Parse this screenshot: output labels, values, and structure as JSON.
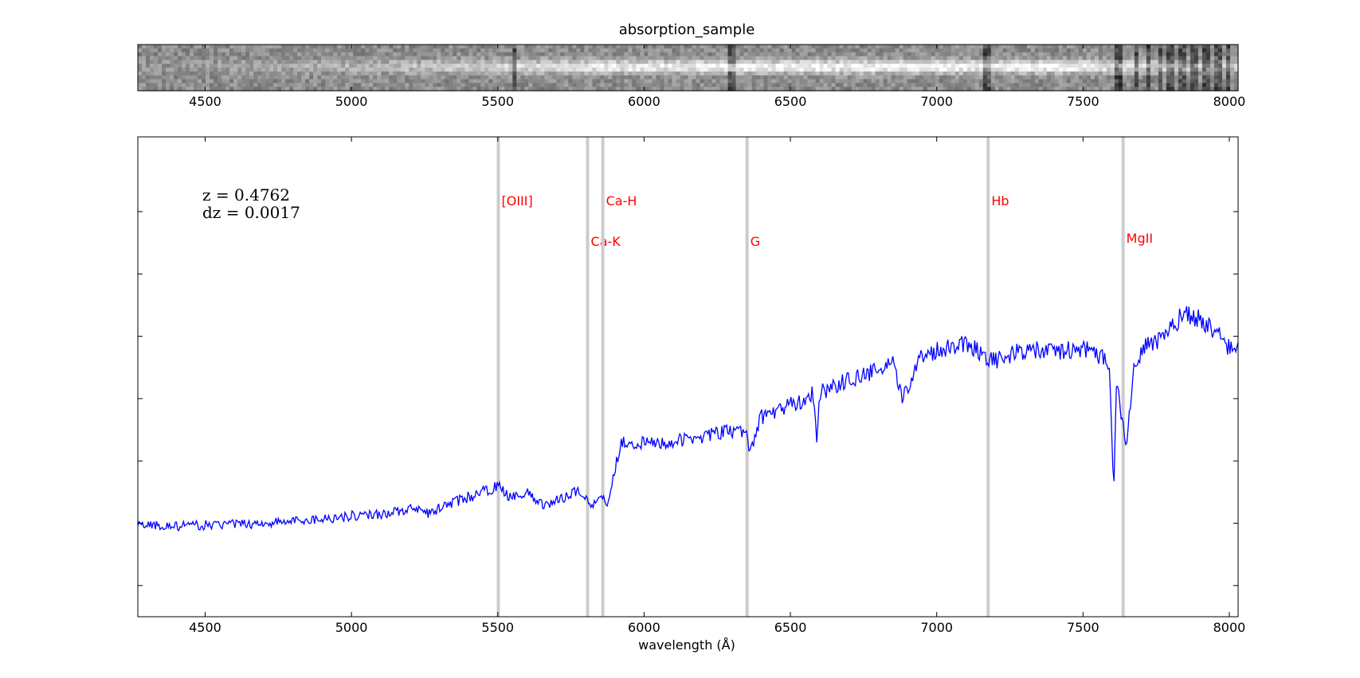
{
  "chart_data": [
    {
      "type": "heatmap",
      "name": "2d-spectrum",
      "title": "absorption_sample",
      "xlim": [
        4270,
        8030
      ],
      "xticks": [
        4500,
        5000,
        5500,
        6000,
        6500,
        7000,
        7500,
        8000
      ],
      "colormap": "grayscale",
      "bright_trace_intensity": [
        {
          "x": 4300,
          "v": 0.05
        },
        {
          "x": 4800,
          "v": 0.25
        },
        {
          "x": 5200,
          "v": 0.45
        },
        {
          "x": 5500,
          "v": 0.65
        },
        {
          "x": 5850,
          "v": 0.85
        },
        {
          "x": 6500,
          "v": 0.95
        },
        {
          "x": 7000,
          "v": 0.95
        },
        {
          "x": 7500,
          "v": 0.9
        },
        {
          "x": 7650,
          "v": 0.7
        },
        {
          "x": 8030,
          "v": 0.5
        }
      ],
      "dark_bands_x": [
        5560,
        6300,
        7170,
        7620,
        7680,
        7720,
        7760,
        7800,
        7840,
        7880,
        7920,
        7960,
        8000
      ]
    },
    {
      "type": "line",
      "name": "1d-spectrum",
      "xlabel": "wavelength (Å)",
      "ylabel": "",
      "xlim": [
        4270,
        8030
      ],
      "ylim": [
        0,
        7.7
      ],
      "xticks": [
        4500,
        5000,
        5500,
        6000,
        6500,
        7000,
        7500,
        8000
      ],
      "ytick_values": [
        0.5,
        1.5,
        2.5,
        3.5,
        4.5,
        5.5,
        6.5
      ],
      "redshift_text": [
        "z = 0.4762",
        "dz = 0.0017"
      ],
      "series": [
        {
          "name": "flux",
          "color": "#0000ff",
          "noise": 0.06,
          "points": [
            [
              4270,
              1.48
            ],
            [
              4400,
              1.45
            ],
            [
              4500,
              1.47
            ],
            [
              4700,
              1.5
            ],
            [
              4900,
              1.57
            ],
            [
              5000,
              1.62
            ],
            [
              5100,
              1.65
            ],
            [
              5200,
              1.72
            ],
            [
              5280,
              1.65
            ],
            [
              5300,
              1.75
            ],
            [
              5400,
              1.92
            ],
            [
              5450,
              2.0
            ],
            [
              5500,
              2.1
            ],
            [
              5530,
              1.95
            ],
            [
              5600,
              1.98
            ],
            [
              5650,
              1.8
            ],
            [
              5700,
              1.85
            ],
            [
              5760,
              2.02
            ],
            [
              5800,
              1.95
            ],
            [
              5820,
              1.72
            ],
            [
              5850,
              2.0
            ],
            [
              5875,
              1.8
            ],
            [
              5920,
              2.8
            ],
            [
              6000,
              2.78
            ],
            [
              6100,
              2.8
            ],
            [
              6200,
              2.9
            ],
            [
              6300,
              2.98
            ],
            [
              6350,
              2.95
            ],
            [
              6360,
              2.65
            ],
            [
              6400,
              3.2
            ],
            [
              6500,
              3.4
            ],
            [
              6560,
              3.5
            ],
            [
              6580,
              3.6
            ],
            [
              6590,
              2.88
            ],
            [
              6600,
              3.6
            ],
            [
              6700,
              3.8
            ],
            [
              6800,
              3.95
            ],
            [
              6850,
              4.05
            ],
            [
              6880,
              3.5
            ],
            [
              6910,
              3.8
            ],
            [
              6950,
              4.2
            ],
            [
              7050,
              4.35
            ],
            [
              7100,
              4.4
            ],
            [
              7150,
              4.25
            ],
            [
              7200,
              4.1
            ],
            [
              7300,
              4.28
            ],
            [
              7400,
              4.25
            ],
            [
              7500,
              4.3
            ],
            [
              7590,
              4.1
            ],
            [
              7605,
              2.05
            ],
            [
              7615,
              3.85
            ],
            [
              7630,
              3.2
            ],
            [
              7650,
              2.75
            ],
            [
              7670,
              3.9
            ],
            [
              7700,
              4.3
            ],
            [
              7750,
              4.4
            ],
            [
              7800,
              4.6
            ],
            [
              7850,
              4.9
            ],
            [
              7900,
              4.75
            ],
            [
              7950,
              4.6
            ],
            [
              8000,
              4.3
            ],
            [
              8030,
              4.3
            ]
          ]
        }
      ],
      "lines": [
        {
          "label": "[OIII]",
          "x": 5502,
          "label_y": 6.6
        },
        {
          "label": "Ca-K",
          "x": 5807,
          "label_y": 5.95
        },
        {
          "label": "Ca-H",
          "x": 5859,
          "label_y": 6.6
        },
        {
          "label": "G",
          "x": 6352,
          "label_y": 5.95
        },
        {
          "label": "Hb",
          "x": 7176,
          "label_y": 6.6
        },
        {
          "label": "MgII",
          "x": 7637,
          "label_y": 6.0
        }
      ],
      "line_color": "#cccccc",
      "label_color": "#ff0000"
    }
  ]
}
